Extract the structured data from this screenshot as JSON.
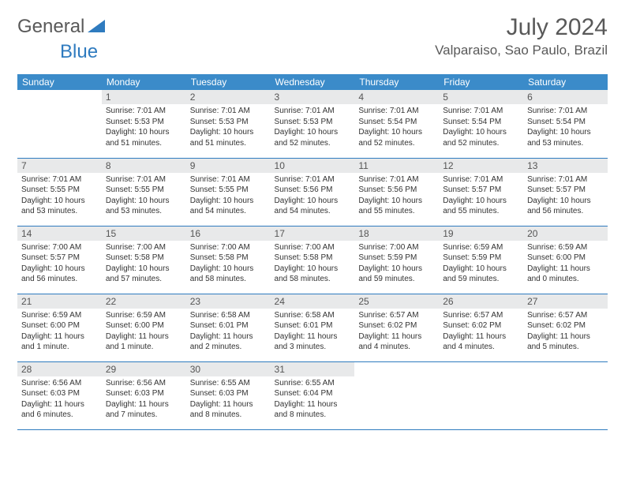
{
  "logo": {
    "text_general": "General",
    "text_blue": "Blue"
  },
  "title": "July 2024",
  "location": "Valparaiso, Sao Paulo, Brazil",
  "colors": {
    "header_bg": "#3b8bc9",
    "header_text": "#ffffff",
    "daynum_bg": "#e8e9ea",
    "border": "#2f7bbf",
    "text": "#333333",
    "title_color": "#595959"
  },
  "day_headers": [
    "Sunday",
    "Monday",
    "Tuesday",
    "Wednesday",
    "Thursday",
    "Friday",
    "Saturday"
  ],
  "weeks": [
    [
      {
        "n": "",
        "sr": "",
        "ss": "",
        "dl": ""
      },
      {
        "n": "1",
        "sr": "7:01 AM",
        "ss": "5:53 PM",
        "dl": "10 hours and 51 minutes."
      },
      {
        "n": "2",
        "sr": "7:01 AM",
        "ss": "5:53 PM",
        "dl": "10 hours and 51 minutes."
      },
      {
        "n": "3",
        "sr": "7:01 AM",
        "ss": "5:53 PM",
        "dl": "10 hours and 52 minutes."
      },
      {
        "n": "4",
        "sr": "7:01 AM",
        "ss": "5:54 PM",
        "dl": "10 hours and 52 minutes."
      },
      {
        "n": "5",
        "sr": "7:01 AM",
        "ss": "5:54 PM",
        "dl": "10 hours and 52 minutes."
      },
      {
        "n": "6",
        "sr": "7:01 AM",
        "ss": "5:54 PM",
        "dl": "10 hours and 53 minutes."
      }
    ],
    [
      {
        "n": "7",
        "sr": "7:01 AM",
        "ss": "5:55 PM",
        "dl": "10 hours and 53 minutes."
      },
      {
        "n": "8",
        "sr": "7:01 AM",
        "ss": "5:55 PM",
        "dl": "10 hours and 53 minutes."
      },
      {
        "n": "9",
        "sr": "7:01 AM",
        "ss": "5:55 PM",
        "dl": "10 hours and 54 minutes."
      },
      {
        "n": "10",
        "sr": "7:01 AM",
        "ss": "5:56 PM",
        "dl": "10 hours and 54 minutes."
      },
      {
        "n": "11",
        "sr": "7:01 AM",
        "ss": "5:56 PM",
        "dl": "10 hours and 55 minutes."
      },
      {
        "n": "12",
        "sr": "7:01 AM",
        "ss": "5:57 PM",
        "dl": "10 hours and 55 minutes."
      },
      {
        "n": "13",
        "sr": "7:01 AM",
        "ss": "5:57 PM",
        "dl": "10 hours and 56 minutes."
      }
    ],
    [
      {
        "n": "14",
        "sr": "7:00 AM",
        "ss": "5:57 PM",
        "dl": "10 hours and 56 minutes."
      },
      {
        "n": "15",
        "sr": "7:00 AM",
        "ss": "5:58 PM",
        "dl": "10 hours and 57 minutes."
      },
      {
        "n": "16",
        "sr": "7:00 AM",
        "ss": "5:58 PM",
        "dl": "10 hours and 58 minutes."
      },
      {
        "n": "17",
        "sr": "7:00 AM",
        "ss": "5:58 PM",
        "dl": "10 hours and 58 minutes."
      },
      {
        "n": "18",
        "sr": "7:00 AM",
        "ss": "5:59 PM",
        "dl": "10 hours and 59 minutes."
      },
      {
        "n": "19",
        "sr": "6:59 AM",
        "ss": "5:59 PM",
        "dl": "10 hours and 59 minutes."
      },
      {
        "n": "20",
        "sr": "6:59 AM",
        "ss": "6:00 PM",
        "dl": "11 hours and 0 minutes."
      }
    ],
    [
      {
        "n": "21",
        "sr": "6:59 AM",
        "ss": "6:00 PM",
        "dl": "11 hours and 1 minute."
      },
      {
        "n": "22",
        "sr": "6:59 AM",
        "ss": "6:00 PM",
        "dl": "11 hours and 1 minute."
      },
      {
        "n": "23",
        "sr": "6:58 AM",
        "ss": "6:01 PM",
        "dl": "11 hours and 2 minutes."
      },
      {
        "n": "24",
        "sr": "6:58 AM",
        "ss": "6:01 PM",
        "dl": "11 hours and 3 minutes."
      },
      {
        "n": "25",
        "sr": "6:57 AM",
        "ss": "6:02 PM",
        "dl": "11 hours and 4 minutes."
      },
      {
        "n": "26",
        "sr": "6:57 AM",
        "ss": "6:02 PM",
        "dl": "11 hours and 4 minutes."
      },
      {
        "n": "27",
        "sr": "6:57 AM",
        "ss": "6:02 PM",
        "dl": "11 hours and 5 minutes."
      }
    ],
    [
      {
        "n": "28",
        "sr": "6:56 AM",
        "ss": "6:03 PM",
        "dl": "11 hours and 6 minutes."
      },
      {
        "n": "29",
        "sr": "6:56 AM",
        "ss": "6:03 PM",
        "dl": "11 hours and 7 minutes."
      },
      {
        "n": "30",
        "sr": "6:55 AM",
        "ss": "6:03 PM",
        "dl": "11 hours and 8 minutes."
      },
      {
        "n": "31",
        "sr": "6:55 AM",
        "ss": "6:04 PM",
        "dl": "11 hours and 8 minutes."
      },
      {
        "n": "",
        "sr": "",
        "ss": "",
        "dl": ""
      },
      {
        "n": "",
        "sr": "",
        "ss": "",
        "dl": ""
      },
      {
        "n": "",
        "sr": "",
        "ss": "",
        "dl": ""
      }
    ]
  ],
  "labels": {
    "sunrise": "Sunrise:",
    "sunset": "Sunset:",
    "daylight": "Daylight:"
  }
}
